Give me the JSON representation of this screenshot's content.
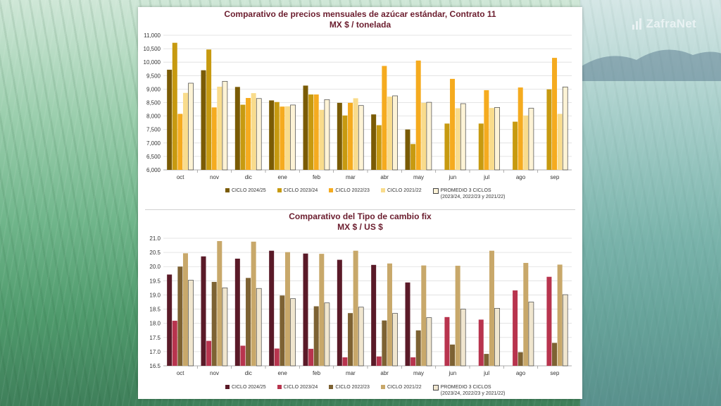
{
  "brand": {
    "name": "ZafraNet"
  },
  "chart_data": [
    {
      "type": "bar",
      "title": "Comparativo de precios mensuales de azúcar estándar, Contrato 11",
      "subtitle": "MX $ / tonelada",
      "categories": [
        "oct",
        "nov",
        "dic",
        "ene",
        "feb",
        "mar",
        "abr",
        "may",
        "jun",
        "jul",
        "ago",
        "sep"
      ],
      "ylim": [
        6000,
        11000
      ],
      "yticks": [
        "6,000",
        "6,500",
        "7,000",
        "7,500",
        "8,000",
        "8,500",
        "9,000",
        "9,500",
        "10,000",
        "10,500",
        "11,000"
      ],
      "grid": true,
      "legend_position": "bottom",
      "series": [
        {
          "name": "CICLO 2024/25",
          "color": "#7a5b05",
          "values": [
            9720,
            9700,
            9080,
            8580,
            9130,
            8490,
            8060,
            7500,
            null,
            null,
            null,
            null
          ]
        },
        {
          "name": "CICLO 2023/24",
          "color": "#c79a10",
          "values": [
            10720,
            10470,
            8420,
            8520,
            8800,
            8020,
            7660,
            6960,
            7720,
            7720,
            7790,
            8990
          ]
        },
        {
          "name": "CICLO 2022/23",
          "color": "#f5ab1f",
          "values": [
            8080,
            8320,
            8670,
            8350,
            8800,
            8490,
            9860,
            10060,
            9380,
            8960,
            9060,
            10160
          ]
        },
        {
          "name": "CICLO 2021/22",
          "color": "#f9dc8c",
          "values": [
            8860,
            9090,
            8850,
            8360,
            8230,
            8660,
            8720,
            8490,
            8290,
            8300,
            8020,
            8080
          ]
        },
        {
          "name": "PROMEDIO 3 CICLOS",
          "name_line2": "(2023/24, 2022/23 y 2021/22)",
          "color": "#fdf3d6",
          "stroke": "#444444",
          "values": [
            9220,
            9290,
            8650,
            8410,
            8610,
            8390,
            8750,
            8510,
            8460,
            8320,
            8290,
            9080
          ]
        }
      ]
    },
    {
      "type": "bar",
      "title": "Comparativo del Tipo de cambio fix",
      "subtitle": "MX $ / US $",
      "categories": [
        "oct",
        "nov",
        "dic",
        "ene",
        "feb",
        "mar",
        "abr",
        "may",
        "jun",
        "jul",
        "ago",
        "sep"
      ],
      "ylim": [
        16.5,
        21.0
      ],
      "yticks": [
        "16.5",
        "17.0",
        "17.5",
        "18.0",
        "18.5",
        "19.0",
        "19.5",
        "20.0",
        "20.5",
        "21.0"
      ],
      "grid": true,
      "legend_position": "bottom",
      "series": [
        {
          "name": "CICLO 2024/25",
          "color": "#5a1a28",
          "values": [
            19.72,
            20.36,
            20.28,
            20.56,
            20.46,
            20.24,
            20.06,
            19.44,
            null,
            null,
            null,
            null
          ]
        },
        {
          "name": "CICLO 2023/24",
          "color": "#b8344e",
          "values": [
            18.09,
            17.38,
            17.21,
            17.11,
            17.1,
            16.8,
            16.83,
            16.8,
            18.22,
            18.13,
            19.16,
            19.64
          ]
        },
        {
          "name": "CICLO 2022/23",
          "color": "#7d6233",
          "values": [
            20.0,
            19.46,
            19.6,
            18.98,
            18.6,
            18.36,
            18.1,
            17.75,
            17.25,
            16.92,
            16.98,
            17.31
          ]
        },
        {
          "name": "CICLO 2021/22",
          "color": "#c8a86a",
          "values": [
            20.47,
            20.9,
            20.88,
            20.51,
            20.45,
            20.56,
            20.11,
            20.04,
            20.03,
            20.56,
            20.13,
            20.07
          ]
        },
        {
          "name": "PROMEDIO 3 CICLOS",
          "name_line2": "(2023/24, 2022/23 y 2021/22)",
          "color": "#f0e6cf",
          "stroke": "#444444",
          "values": [
            19.52,
            19.25,
            19.23,
            18.87,
            18.72,
            18.57,
            18.35,
            18.2,
            18.5,
            18.53,
            18.75,
            19.01
          ]
        }
      ]
    }
  ]
}
